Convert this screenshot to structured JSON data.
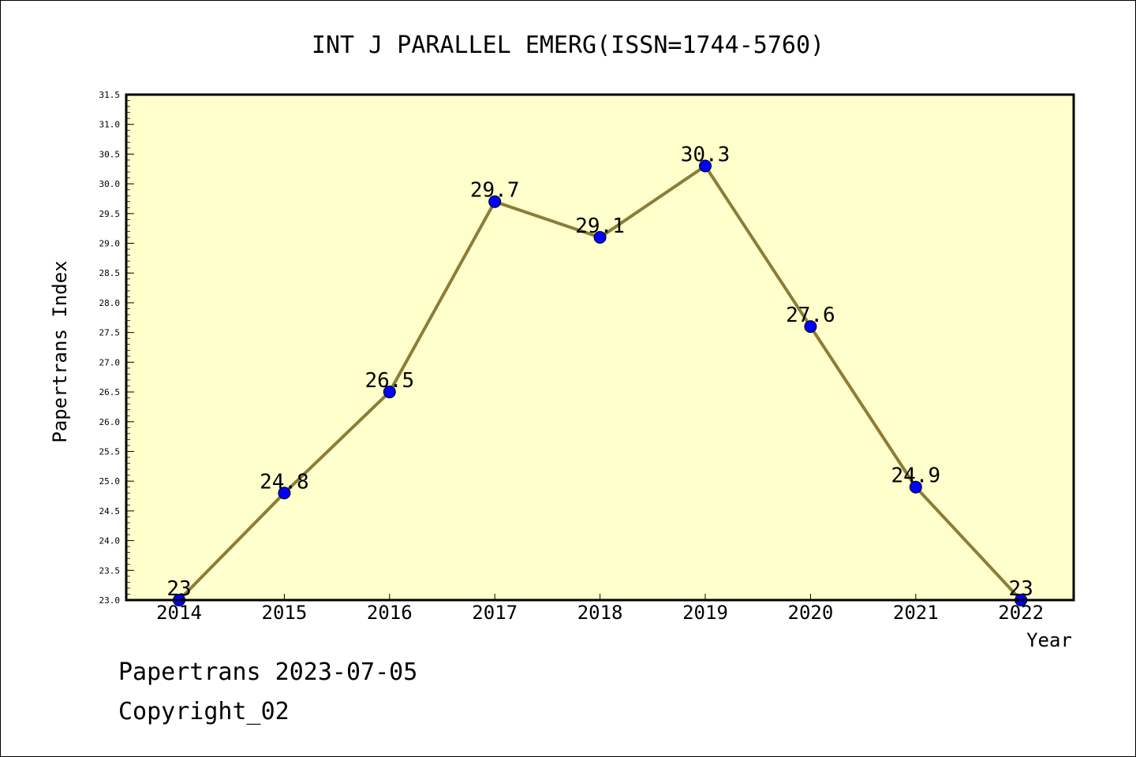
{
  "chart_data": {
    "type": "line",
    "title": "INT J PARALLEL EMERG(ISSN=1744-5760)",
    "xlabel": "Year",
    "ylabel": "Papertrans Index",
    "categories": [
      "2014",
      "2015",
      "2016",
      "2017",
      "2018",
      "2019",
      "2020",
      "2021",
      "2022"
    ],
    "series": [
      {
        "values": [
          23,
          24.8,
          26.5,
          29.7,
          29.1,
          30.3,
          27.6,
          24.9,
          23
        ],
        "labels": [
          "23",
          "24.8",
          "26.5",
          "29.7",
          "29.1",
          "30.3",
          "27.6",
          "24.9",
          "23"
        ]
      }
    ],
    "ylim": [
      23.0,
      31.5
    ],
    "yticks": [
      "23.0",
      "23.5",
      "24.0",
      "24.5",
      "25.0",
      "25.5",
      "26.0",
      "26.5",
      "27.0",
      "27.5",
      "28.0",
      "28.5",
      "29.0",
      "29.5",
      "30.0",
      "30.5",
      "31.0",
      "31.5"
    ],
    "grid": false,
    "colors": {
      "background": "#ffffcc",
      "line": "#8b7d3a",
      "marker": "#0000ff"
    }
  },
  "footer": {
    "line1": "Papertrans 2023-07-05",
    "line2": "Copyright_02"
  }
}
